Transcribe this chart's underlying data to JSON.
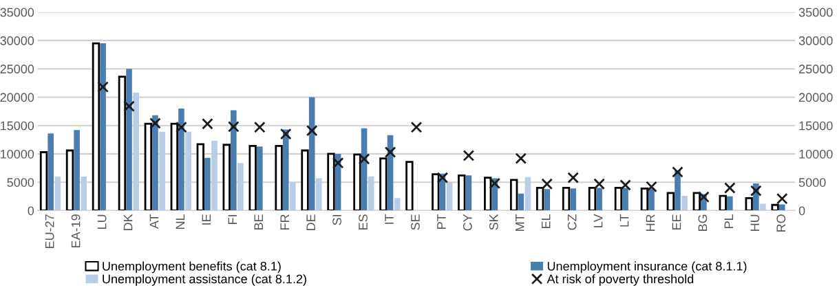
{
  "chart_data": {
    "type": "bar",
    "categories": [
      "EU-27",
      "EA-19",
      "LU",
      "DK",
      "AT",
      "NL",
      "IE",
      "FI",
      "BE",
      "FR",
      "DE",
      "SI",
      "ES",
      "IT",
      "SE",
      "PT",
      "CY",
      "SK",
      "MT",
      "EL",
      "CZ",
      "LV",
      "LT",
      "HR",
      "EE",
      "BG",
      "PL",
      "HU",
      "RO"
    ],
    "series": [
      {
        "name": "Unemployment benefits (cat 8.1)",
        "color": "#ffffff",
        "values": [
          10300,
          10600,
          29500,
          23600,
          15300,
          15300,
          11700,
          11600,
          11400,
          11400,
          10600,
          10000,
          9900,
          9200,
          8600,
          6400,
          6200,
          5800,
          5400,
          4000,
          4000,
          4000,
          4000,
          3900,
          3100,
          3100,
          2600,
          2200,
          1000
        ]
      },
      {
        "name": "Unemployment insurance (cat 8.1.1)",
        "color": "#4a7eb0",
        "values": [
          13600,
          14200,
          29500,
          25000,
          16800,
          18000,
          9300,
          17700,
          11300,
          14300,
          20000,
          10000,
          14500,
          13300,
          null,
          6500,
          6200,
          5700,
          3000,
          3800,
          3900,
          4000,
          4000,
          3900,
          7100,
          2900,
          2500,
          4800,
          1100
        ]
      },
      {
        "name": "Unemployment assistance (cat 8.1.2)",
        "color": "#b8cde8",
        "values": [
          6000,
          6000,
          null,
          20800,
          13900,
          13900,
          12300,
          8400,
          null,
          5000,
          5700,
          null,
          6000,
          2200,
          null,
          5000,
          null,
          null,
          5900,
          null,
          null,
          null,
          null,
          null,
          2600,
          null,
          null,
          1200,
          null
        ]
      },
      {
        "name": "At risk of poverty threshold",
        "type": "scatter",
        "marker": "cross",
        "color": "#1a1a1a",
        "values": [
          null,
          null,
          21800,
          18400,
          15400,
          14700,
          15300,
          14800,
          14700,
          13500,
          14100,
          8400,
          9100,
          10300,
          14700,
          5800,
          9700,
          4800,
          9200,
          4700,
          5800,
          4700,
          4500,
          4200,
          6800,
          2400,
          4000,
          3500,
          2100
        ]
      }
    ],
    "ylim": [
      0,
      35000
    ],
    "yticks": [
      0,
      5000,
      10000,
      15000,
      20000,
      25000,
      30000,
      35000
    ],
    "y2lim": [
      0,
      35000
    ],
    "y2ticks": [
      0,
      5000,
      10000,
      15000,
      20000,
      25000,
      30000,
      35000
    ],
    "grid": "y",
    "legend": "bottom"
  }
}
